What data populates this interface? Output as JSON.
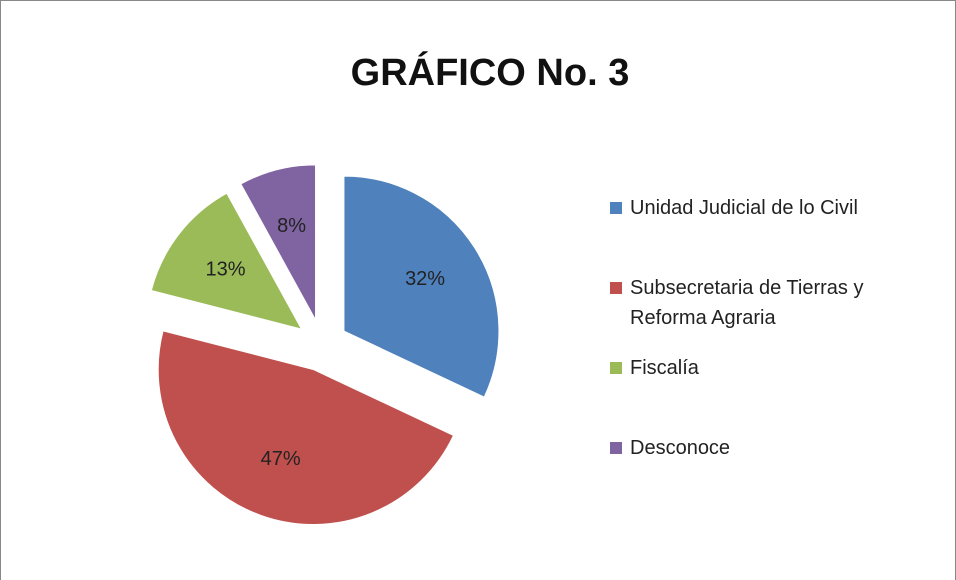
{
  "chart_data": {
    "type": "pie",
    "title": "GRÁFICO No. 3",
    "categories": [
      "Unidad Judicial de lo Civil",
      "Subsecretaria de Tierras y Reforma Agraria",
      "Fiscalía",
      "Desconoce"
    ],
    "values": [
      32,
      47,
      13,
      8
    ],
    "value_labels": [
      "32%",
      "47%",
      "13%",
      "8%"
    ],
    "colors": [
      "#4f81bd",
      "#c0504d",
      "#9bbb59",
      "#8064a2"
    ],
    "legend": "right"
  }
}
